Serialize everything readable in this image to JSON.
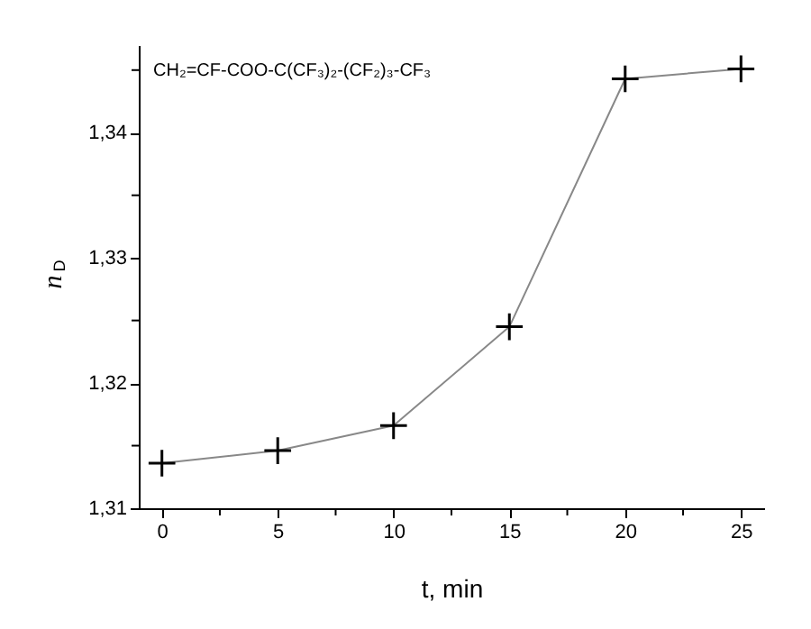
{
  "chart_data": {
    "type": "line",
    "title": "CH₂=CF-COO-C(CF₃)₂-(CF₂)₃-CF₃",
    "xlabel": "t, min",
    "ylabel": "n$_{D}$",
    "x": [
      0,
      5,
      10,
      15,
      20,
      25
    ],
    "series": [
      {
        "color": "#000000",
        "values": [
          1.3136,
          1.3146,
          1.3166,
          1.3245,
          1.3443,
          1.3451
        ]
      }
    ],
    "xlim": [
      -1,
      26
    ],
    "ylim": [
      1.31,
      1.347
    ],
    "xticks": [
      0,
      {
        "value": 2.5,
        "label": null
      },
      5,
      {
        "value": 7.5,
        "label": null
      },
      10,
      {
        "value": 12.5,
        "label": null
      },
      15,
      {
        "value": 17.5,
        "label": null
      },
      20,
      {
        "value": 22.5,
        "label": null
      },
      25
    ],
    "yticks": [
      {
        "value": 1.31,
        "label": "1,31"
      },
      {
        "value": 1.315,
        "label": null
      },
      {
        "value": 1.32,
        "label": "1,32"
      },
      {
        "value": 1.325,
        "label": null
      },
      {
        "value": 1.33,
        "label": "1,33"
      },
      {
        "value": 1.335,
        "label": null
      },
      {
        "value": 1.34,
        "label": "1,34"
      },
      {
        "value": 1.345,
        "label": null
      }
    ],
    "grid": false,
    "marker": "cross",
    "line_style": "solid"
  }
}
